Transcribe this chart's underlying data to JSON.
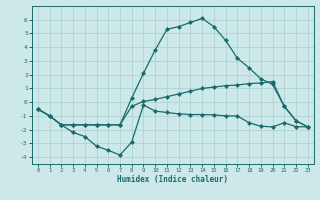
{
  "line1_x": [
    0,
    1,
    2,
    3,
    4,
    5,
    6,
    7,
    8,
    9,
    10,
    11,
    12,
    13,
    14,
    15,
    16,
    17,
    18,
    19,
    20,
    21,
    22,
    23
  ],
  "line1_y": [
    -0.5,
    -1.0,
    -1.65,
    -2.2,
    -2.5,
    -3.2,
    -3.5,
    -3.85,
    -2.9,
    -0.2,
    -0.65,
    -0.75,
    -0.85,
    -0.9,
    -0.9,
    -0.92,
    -1.0,
    -1.0,
    -1.5,
    -1.75,
    -1.8,
    -1.5,
    -1.78,
    -1.8
  ],
  "line2_x": [
    0,
    1,
    2,
    3,
    4,
    5,
    6,
    7,
    8,
    9,
    10,
    11,
    12,
    13,
    14,
    15,
    16,
    17,
    18,
    19,
    20,
    21,
    22,
    23
  ],
  "line2_y": [
    -0.5,
    -1.0,
    -1.65,
    -1.65,
    -1.65,
    -1.65,
    -1.65,
    -1.65,
    0.3,
    2.1,
    3.8,
    5.3,
    5.5,
    5.8,
    6.1,
    5.5,
    4.5,
    3.2,
    2.5,
    1.7,
    1.3,
    -0.3,
    -1.35,
    -1.8
  ],
  "line3_x": [
    0,
    1,
    2,
    3,
    4,
    5,
    6,
    7,
    8,
    9,
    10,
    11,
    12,
    13,
    14,
    15,
    16,
    17,
    18,
    19,
    20,
    21,
    22,
    23
  ],
  "line3_y": [
    -0.5,
    -1.0,
    -1.65,
    -1.65,
    -1.65,
    -1.65,
    -1.65,
    -1.65,
    -0.3,
    0.05,
    0.2,
    0.4,
    0.6,
    0.8,
    1.0,
    1.1,
    1.2,
    1.25,
    1.35,
    1.4,
    1.5,
    -0.3,
    -1.35,
    -1.8
  ],
  "line_color": "#1a6b6b",
  "bg_color": "#cce8e8",
  "grid_color": "#aacece",
  "xlabel": "Humidex (Indice chaleur)",
  "ylim": [
    -4.5,
    7.0
  ],
  "xlim": [
    -0.5,
    23.5
  ],
  "yticks": [
    -4,
    -3,
    -2,
    -1,
    0,
    1,
    2,
    3,
    4,
    5,
    6
  ],
  "xticks": [
    0,
    1,
    2,
    3,
    4,
    5,
    6,
    7,
    8,
    9,
    10,
    11,
    12,
    13,
    14,
    15,
    16,
    17,
    18,
    19,
    20,
    21,
    22,
    23
  ],
  "marker": "D",
  "markersize": 2.0,
  "linewidth": 0.9
}
